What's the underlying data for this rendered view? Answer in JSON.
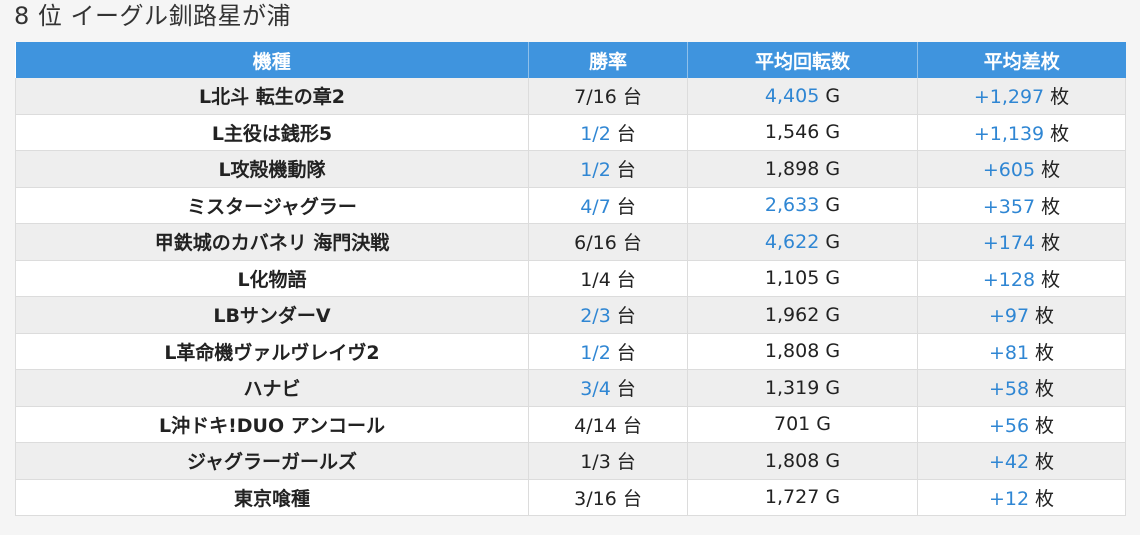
{
  "page": {
    "title": "8 位 イーグル釧路星が浦"
  },
  "table": {
    "headers": [
      "機種",
      "勝率",
      "平均回転数",
      "平均差枚"
    ],
    "units": {
      "win_rate": "台",
      "spins": "G",
      "diff": "枚"
    },
    "colors": {
      "header_bg": "#3f94de",
      "highlight": "#2f86d3",
      "row_alt": "#eeeeee"
    },
    "rows": [
      {
        "machine": "L北斗 転生の章2",
        "win_rate": "7/16",
        "win_rate_hl": false,
        "spins": "4,405",
        "spins_hl": true,
        "diff": "+1,297",
        "diff_hl": true
      },
      {
        "machine": "L主役は銭形5",
        "win_rate": "1/2",
        "win_rate_hl": true,
        "spins": "1,546",
        "spins_hl": false,
        "diff": "+1,139",
        "diff_hl": true
      },
      {
        "machine": "L攻殻機動隊",
        "win_rate": "1/2",
        "win_rate_hl": true,
        "spins": "1,898",
        "spins_hl": false,
        "diff": "+605",
        "diff_hl": true
      },
      {
        "machine": "ミスタージャグラー",
        "win_rate": "4/7",
        "win_rate_hl": true,
        "spins": "2,633",
        "spins_hl": true,
        "diff": "+357",
        "diff_hl": true
      },
      {
        "machine": "甲鉄城のカバネリ 海門決戦",
        "win_rate": "6/16",
        "win_rate_hl": false,
        "spins": "4,622",
        "spins_hl": true,
        "diff": "+174",
        "diff_hl": true
      },
      {
        "machine": "L化物語",
        "win_rate": "1/4",
        "win_rate_hl": false,
        "spins": "1,105",
        "spins_hl": false,
        "diff": "+128",
        "diff_hl": true
      },
      {
        "machine": "LBサンダーV",
        "win_rate": "2/3",
        "win_rate_hl": true,
        "spins": "1,962",
        "spins_hl": false,
        "diff": "+97",
        "diff_hl": true
      },
      {
        "machine": "L革命機ヴァルヴレイヴ2",
        "win_rate": "1/2",
        "win_rate_hl": true,
        "spins": "1,808",
        "spins_hl": false,
        "diff": "+81",
        "diff_hl": true
      },
      {
        "machine": "ハナビ",
        "win_rate": "3/4",
        "win_rate_hl": true,
        "spins": "1,319",
        "spins_hl": false,
        "diff": "+58",
        "diff_hl": true
      },
      {
        "machine": "L沖ドキ!DUO アンコール",
        "win_rate": "4/14",
        "win_rate_hl": false,
        "spins": "701",
        "spins_hl": false,
        "diff": "+56",
        "diff_hl": true
      },
      {
        "machine": "ジャグラーガールズ",
        "win_rate": "1/3",
        "win_rate_hl": false,
        "spins": "1,808",
        "spins_hl": false,
        "diff": "+42",
        "diff_hl": true
      },
      {
        "machine": "東京喰種",
        "win_rate": "3/16",
        "win_rate_hl": false,
        "spins": "1,727",
        "spins_hl": false,
        "diff": "+12",
        "diff_hl": true
      }
    ]
  }
}
